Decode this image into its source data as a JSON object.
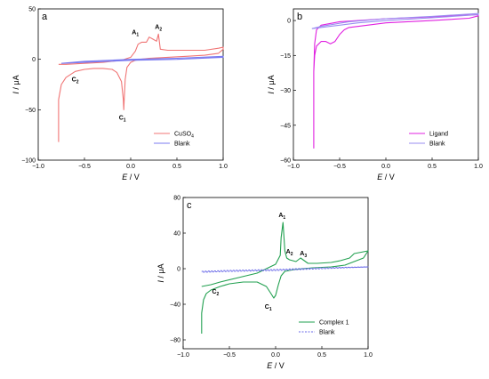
{
  "chart_data": [
    {
      "type": "line",
      "panel_label": "a",
      "xlabel_var": "E",
      "xlabel_unit": " / V",
      "ylabel_var": "I",
      "ylabel_unit": " / μA",
      "xlim": [
        -1.0,
        1.0
      ],
      "ylim": [
        -100,
        50
      ],
      "xticks": [
        -1.0,
        -0.5,
        0.0,
        0.5,
        1.0
      ],
      "xtick_labels": [
        "−1.0",
        "−0.5",
        "0.0",
        "0.5",
        "1.0"
      ],
      "yticks": [
        -100,
        -50,
        0,
        50
      ],
      "ytick_labels": [
        "−100",
        "−50",
        "0",
        "50"
      ],
      "legend_position": "bottom-right",
      "series": [
        {
          "name": "CuSO4",
          "color": "#f07575",
          "points": [
            [
              -0.78,
              -82
            ],
            [
              -0.78,
              -40
            ],
            [
              -0.75,
              -25
            ],
            [
              -0.7,
              -18
            ],
            [
              -0.6,
              -12
            ],
            [
              -0.5,
              -10
            ],
            [
              -0.4,
              -9
            ],
            [
              -0.3,
              -9
            ],
            [
              -0.2,
              -10
            ],
            [
              -0.15,
              -13
            ],
            [
              -0.1,
              -22
            ],
            [
              -0.08,
              -40
            ],
            [
              -0.075,
              -50
            ],
            [
              -0.07,
              -40
            ],
            [
              -0.06,
              -20
            ],
            [
              -0.04,
              -8
            ],
            [
              0.0,
              -3
            ],
            [
              0.05,
              -1
            ],
            [
              0.1,
              0
            ],
            [
              0.2,
              1
            ],
            [
              0.4,
              2
            ],
            [
              0.6,
              3
            ],
            [
              0.8,
              4
            ],
            [
              0.95,
              6
            ],
            [
              1.0,
              10
            ],
            [
              1.0,
              12
            ],
            [
              0.95,
              11
            ],
            [
              0.8,
              9
            ],
            [
              0.6,
              9
            ],
            [
              0.4,
              9
            ],
            [
              0.32,
              10
            ],
            [
              0.3,
              25
            ],
            [
              0.28,
              18
            ],
            [
              0.24,
              20
            ],
            [
              0.2,
              22
            ],
            [
              0.17,
              17
            ],
            [
              0.12,
              17
            ],
            [
              0.08,
              15
            ],
            [
              0.05,
              8
            ],
            [
              0.0,
              2
            ],
            [
              -0.1,
              -1
            ],
            [
              -0.3,
              -3
            ],
            [
              -0.5,
              -4
            ],
            [
              -0.7,
              -5
            ],
            [
              -0.78,
              -5
            ]
          ]
        },
        {
          "name": "Blank",
          "color": "#7b7bf0",
          "points": [
            [
              -0.75,
              -4
            ],
            [
              -0.5,
              -3
            ],
            [
              0.0,
              -1
            ],
            [
              0.5,
              0
            ],
            [
              1.0,
              2
            ],
            [
              1.0,
              3
            ],
            [
              0.5,
              1
            ],
            [
              0.0,
              0
            ],
            [
              -0.5,
              -2
            ],
            [
              -0.75,
              -4
            ]
          ]
        }
      ],
      "annotations": [
        {
          "base": "A",
          "sub": "1",
          "x": 0.05,
          "y": 25
        },
        {
          "base": "A",
          "sub": "2",
          "x": 0.3,
          "y": 30
        },
        {
          "base": "C",
          "sub": "2",
          "x": -0.6,
          "y": -22
        },
        {
          "base": "C",
          "sub": "1",
          "x": -0.09,
          "y": -60
        }
      ]
    },
    {
      "type": "line",
      "panel_label": "b",
      "xlabel_var": "E",
      "xlabel_unit": " / V",
      "ylabel_var": "I",
      "ylabel_unit": " / μA",
      "xlim": [
        -1.0,
        1.0
      ],
      "ylim": [
        -60,
        5
      ],
      "xticks": [
        -1.0,
        -0.5,
        0.0,
        0.5,
        1.0
      ],
      "xtick_labels": [
        "−1.0",
        "−0.5",
        "0.0",
        "0.5",
        "1.0"
      ],
      "yticks": [
        -60,
        -45,
        -30,
        -15,
        0
      ],
      "ytick_labels": [
        "−60",
        "−45",
        "−30",
        "−15",
        "0"
      ],
      "legend_position": "bottom-right",
      "series": [
        {
          "name": "Ligand",
          "color": "#e020e0",
          "points": [
            [
              -0.78,
              -55
            ],
            [
              -0.78,
              -22
            ],
            [
              -0.77,
              -15
            ],
            [
              -0.75,
              -11
            ],
            [
              -0.7,
              -9
            ],
            [
              -0.65,
              -9
            ],
            [
              -0.6,
              -10
            ],
            [
              -0.55,
              -9
            ],
            [
              -0.5,
              -6
            ],
            [
              -0.45,
              -4
            ],
            [
              -0.4,
              -3
            ],
            [
              -0.2,
              -2
            ],
            [
              0.0,
              -1
            ],
            [
              0.5,
              0
            ],
            [
              0.9,
              1
            ],
            [
              1.0,
              2
            ],
            [
              1.0,
              2.5
            ],
            [
              0.8,
              2.2
            ],
            [
              0.5,
              1.6
            ],
            [
              0.0,
              0.8
            ],
            [
              -0.5,
              -0.5
            ],
            [
              -0.7,
              -2
            ],
            [
              -0.75,
              -4
            ],
            [
              -0.77,
              -10
            ],
            [
              -0.78,
              -22
            ]
          ]
        },
        {
          "name": "Blank",
          "color": "#9a8ef0",
          "points": [
            [
              -0.8,
              -3.5
            ],
            [
              -0.6,
              -2.5
            ],
            [
              -0.3,
              -1
            ],
            [
              0.0,
              0
            ],
            [
              0.5,
              1.2
            ],
            [
              1.0,
              2.5
            ],
            [
              1.0,
              3
            ],
            [
              0.5,
              1.8
            ],
            [
              0.0,
              0.8
            ],
            [
              -0.4,
              -0.5
            ],
            [
              -0.7,
              -2.5
            ],
            [
              -0.8,
              -3.5
            ]
          ]
        }
      ],
      "annotations": []
    },
    {
      "type": "line",
      "panel_label": "c",
      "xlabel_var": "E",
      "xlabel_unit": " / V",
      "ylabel_var": "I",
      "ylabel_unit": " / μA",
      "xlim": [
        -1.0,
        1.0
      ],
      "ylim": [
        -90,
        80
      ],
      "xticks": [
        -1.0,
        -0.5,
        0.0,
        0.5,
        1.0
      ],
      "xtick_labels": [
        "−1.0",
        "−0.5",
        "0.0",
        "0.5",
        "1.0"
      ],
      "yticks": [
        -80,
        -40,
        0,
        40,
        80
      ],
      "ytick_labels": [
        "−80",
        "−40",
        "0",
        "40",
        "80"
      ],
      "legend_position": "bottom-right",
      "series": [
        {
          "name": "Complex 1",
          "color": "#22a050",
          "points": [
            [
              -0.8,
              -73
            ],
            [
              -0.8,
              -50
            ],
            [
              -0.78,
              -35
            ],
            [
              -0.75,
              -28
            ],
            [
              -0.7,
              -24
            ],
            [
              -0.6,
              -20
            ],
            [
              -0.5,
              -17
            ],
            [
              -0.35,
              -15
            ],
            [
              -0.2,
              -15
            ],
            [
              -0.1,
              -20
            ],
            [
              -0.05,
              -28
            ],
            [
              -0.02,
              -33
            ],
            [
              0.0,
              -30
            ],
            [
              0.03,
              -18
            ],
            [
              0.06,
              -8
            ],
            [
              0.1,
              -3
            ],
            [
              0.2,
              -1
            ],
            [
              0.4,
              1
            ],
            [
              0.6,
              2
            ],
            [
              0.75,
              4
            ],
            [
              0.85,
              8
            ],
            [
              0.95,
              12
            ],
            [
              1.0,
              20
            ],
            [
              0.95,
              19
            ],
            [
              0.85,
              17
            ],
            [
              0.8,
              12
            ],
            [
              0.7,
              9
            ],
            [
              0.6,
              7
            ],
            [
              0.45,
              6
            ],
            [
              0.35,
              6
            ],
            [
              0.27,
              12
            ],
            [
              0.22,
              8
            ],
            [
              0.15,
              10
            ],
            [
              0.12,
              12
            ],
            [
              0.1,
              20
            ],
            [
              0.08,
              52
            ],
            [
              0.06,
              35
            ],
            [
              0.05,
              15
            ],
            [
              0.0,
              5
            ],
            [
              -0.2,
              -5
            ],
            [
              -0.4,
              -10
            ],
            [
              -0.6,
              -15
            ],
            [
              -0.7,
              -18
            ],
            [
              -0.8,
              -20
            ]
          ]
        },
        {
          "name": "Blank",
          "color": "#6a6ae8",
          "dashed": true,
          "points": [
            [
              -0.8,
              -3
            ],
            [
              -0.5,
              -2
            ],
            [
              0.0,
              -1
            ],
            [
              0.5,
              1
            ],
            [
              1.0,
              2
            ],
            [
              0.5,
              0
            ],
            [
              0.0,
              -2
            ],
            [
              -0.5,
              -3
            ],
            [
              -0.8,
              -4
            ]
          ]
        }
      ],
      "annotations": [
        {
          "base": "A",
          "sub": "1",
          "x": 0.07,
          "y": 58
        },
        {
          "base": "A",
          "sub": "2",
          "x": 0.15,
          "y": 17
        },
        {
          "base": "A",
          "sub": "3",
          "x": 0.3,
          "y": 15
        },
        {
          "base": "C",
          "sub": "2",
          "x": -0.65,
          "y": -28
        },
        {
          "base": "C",
          "sub": "1",
          "x": -0.08,
          "y": -45
        }
      ]
    }
  ]
}
